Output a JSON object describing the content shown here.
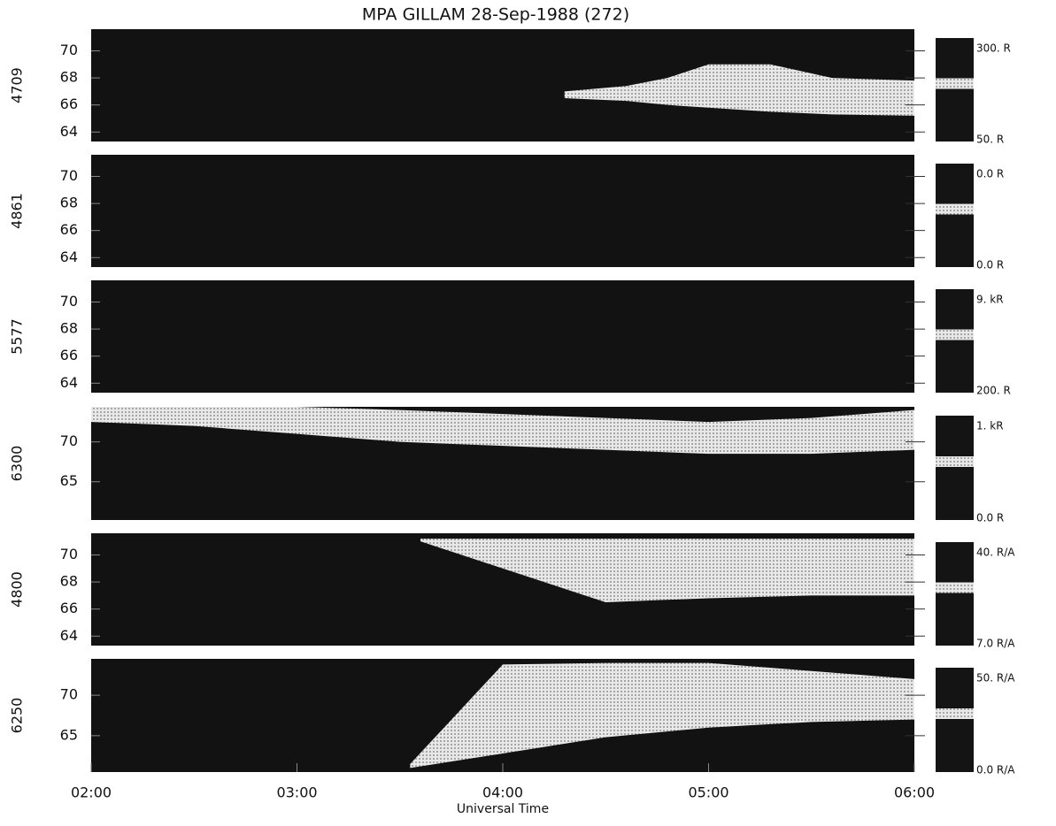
{
  "title": "MPA   GILLAM   28-Sep-1988 (272)",
  "xlabel": "Universal Time",
  "xlim": [
    2,
    6
  ],
  "xticks": [
    {
      "value": 2,
      "label": "02:00"
    },
    {
      "value": 3,
      "label": "03:00"
    },
    {
      "value": 4,
      "label": "04:00"
    },
    {
      "value": 5,
      "label": "05:00"
    },
    {
      "value": 6,
      "label": "06:00"
    }
  ],
  "chart_data": [
    {
      "type": "keogram",
      "ylabel": "4709",
      "ylim": [
        63.3,
        71.6
      ],
      "yticks": [
        64,
        66,
        68,
        70
      ],
      "colorbar_labels": [
        "300. R",
        "50. R"
      ],
      "band": {
        "x": [
          4.3,
          4.6,
          4.8,
          5,
          5.3,
          5.6,
          6
        ],
        "low": [
          66.5,
          66.3,
          66,
          65.8,
          65.5,
          65.3,
          65.2
        ],
        "high": [
          67,
          67.4,
          68,
          69,
          69,
          68,
          67.8
        ]
      }
    },
    {
      "type": "keogram",
      "ylabel": "4861",
      "ylim": [
        63.3,
        71.6
      ],
      "yticks": [
        64,
        66,
        68,
        70
      ],
      "colorbar_labels": [
        "0.0 R",
        "0.0 R"
      ]
    },
    {
      "type": "keogram",
      "ylabel": "5577",
      "ylim": [
        63.3,
        71.6
      ],
      "yticks": [
        64,
        66,
        68,
        70
      ],
      "colorbar_labels": [
        "9. kR",
        "200. R"
      ]
    },
    {
      "type": "keogram",
      "ylabel": "6300",
      "ylim": [
        60.2,
        74.4
      ],
      "yticks": [
        65,
        70
      ],
      "colorbar_labels": [
        "1. kR",
        "0.0 R"
      ],
      "band": {
        "x": [
          2,
          2.5,
          3,
          3.5,
          4,
          4.5,
          5,
          5.5,
          6
        ],
        "low": [
          72.5,
          72,
          71,
          70,
          69.5,
          69,
          68.5,
          68.5,
          69
        ],
        "high": [
          74.4,
          74.4,
          74.4,
          74,
          73.5,
          73,
          72.5,
          73,
          74
        ]
      }
    },
    {
      "type": "keogram",
      "ylabel": "4800",
      "ylim": [
        63.3,
        71.6
      ],
      "yticks": [
        64,
        66,
        68,
        70
      ],
      "colorbar_labels": [
        "40. R/A",
        "7.0 R/A"
      ],
      "band": {
        "x": [
          3.6,
          4,
          4.5,
          5,
          5.5,
          6
        ],
        "low": [
          71,
          69,
          66.5,
          66.8,
          67,
          67
        ],
        "high": [
          71.2,
          71.2,
          71.2,
          71.2,
          71.2,
          71.2
        ]
      }
    },
    {
      "type": "keogram",
      "ylabel": "6250",
      "ylim": [
        60.5,
        74.5
      ],
      "yticks": [
        65,
        70
      ],
      "colorbar_labels": [
        "50. R/A",
        "0.0 R/A"
      ],
      "band": {
        "x": [
          3.55,
          4,
          4.5,
          5,
          5.5,
          6
        ],
        "low": [
          61,
          62.8,
          64.8,
          66,
          66.7,
          67
        ],
        "high": [
          61.5,
          73.8,
          74,
          74,
          73,
          72
        ]
      }
    }
  ]
}
